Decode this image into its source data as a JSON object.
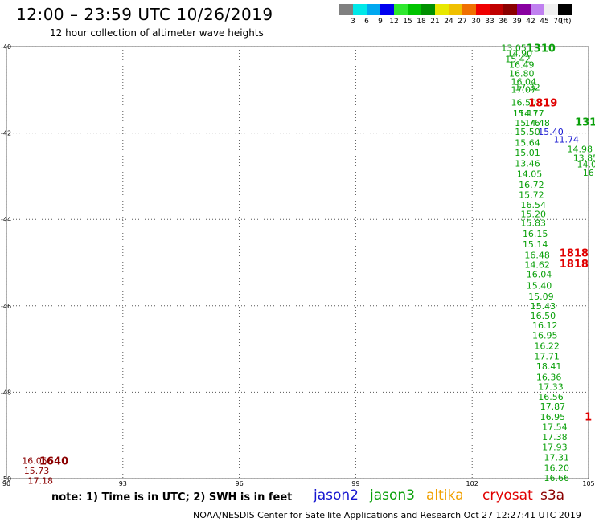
{
  "title": "12:00 – 23:59 UTC 10/26/2019",
  "subtitle": "12 hour collection of altimeter wave heights",
  "note": "note:  1) Time is in UTC;  2) SWH is in feet",
  "footer": "NOAA/NESDIS Center for Satellite Applications and Research     Oct 27 12:27:41 UTC 2019",
  "satellites": [
    {
      "name": "jason2",
      "color": "#1515d0"
    },
    {
      "name": "jason3",
      "color": "#0aa00a"
    },
    {
      "name": "altika",
      "color": "#f0a000"
    },
    {
      "name": "cryosat",
      "color": "#e00000"
    },
    {
      "name": "s3a",
      "color": "#8b0000"
    }
  ],
  "colorbar": {
    "colors": [
      "#808080",
      "#00e8e8",
      "#00a8f0",
      "#0000f0",
      "#2ee82e",
      "#00c400",
      "#009000",
      "#e8e800",
      "#f0c000",
      "#f07000",
      "#f00000",
      "#c00000",
      "#8b0000",
      "#8800a0",
      "#c080f0",
      "#f0f0f0",
      "#000000"
    ],
    "labels": [
      "3",
      "6",
      "9",
      "12",
      "15",
      "18",
      "21",
      "24",
      "27",
      "30",
      "33",
      "36",
      "39",
      "42",
      "45",
      "70"
    ],
    "unit": "(ft)"
  },
  "chart_data": {
    "type": "scatter",
    "map_extent": {
      "lon": [
        90,
        105
      ],
      "lat": [
        -50,
        -40
      ]
    },
    "lon_ticks": [
      "90",
      "93",
      "96",
      "99",
      "102",
      "105"
    ],
    "lat_ticks": [
      "-40",
      "-42",
      "-44",
      "-46",
      "-48",
      "-50"
    ],
    "grid": true,
    "tracks": [
      {
        "satellite": "jason3",
        "color": "#0aa00a",
        "time_label": "1310",
        "time_lon": 103.4,
        "time_lat": -40.03,
        "points": [
          {
            "lon": 102.75,
            "lat": -40.03,
            "swh": "13.05"
          },
          {
            "lon": 102.9,
            "lat": -40.16,
            "swh": "14.90"
          },
          {
            "lon": 102.85,
            "lat": -40.29,
            "swh": "15.42"
          },
          {
            "lon": 102.95,
            "lat": -40.42,
            "swh": "16.49"
          },
          {
            "lon": 102.95,
            "lat": -40.62,
            "swh": "16.80"
          },
          {
            "lon": 103.0,
            "lat": -40.81,
            "swh": "16.04"
          },
          {
            "lon": 103.0,
            "lat": -40.99,
            "swh": "17.07"
          },
          {
            "lon": 103.1,
            "lat": -40.94,
            "swh": "17.32"
          },
          {
            "lon": 103.0,
            "lat": -41.29,
            "swh": "16.50"
          },
          {
            "lon": 103.05,
            "lat": -41.54,
            "swh": "15.11"
          },
          {
            "lon": 103.2,
            "lat": -41.54,
            "swh": "14.77"
          },
          {
            "lon": 103.1,
            "lat": -41.77,
            "swh": "15.76"
          },
          {
            "lon": 103.35,
            "lat": -41.77,
            "swh": "14.48"
          },
          {
            "lon": 103.1,
            "lat": -41.97,
            "swh": "15.50"
          },
          {
            "lon": 103.1,
            "lat": -42.22,
            "swh": "15.64"
          },
          {
            "lon": 103.1,
            "lat": -42.45,
            "swh": "15.01"
          },
          {
            "lon": 103.1,
            "lat": -42.7,
            "swh": "13.46"
          },
          {
            "lon": 103.15,
            "lat": -42.95,
            "swh": "14.05"
          },
          {
            "lon": 103.2,
            "lat": -43.2,
            "swh": "16.72"
          },
          {
            "lon": 103.2,
            "lat": -43.43,
            "swh": "15.72"
          },
          {
            "lon": 103.25,
            "lat": -43.66,
            "swh": "16.54"
          },
          {
            "lon": 103.25,
            "lat": -43.88,
            "swh": "15.20"
          },
          {
            "lon": 103.25,
            "lat": -44.08,
            "swh": "15.83"
          },
          {
            "lon": 103.3,
            "lat": -44.33,
            "swh": "16.15"
          },
          {
            "lon": 103.3,
            "lat": -44.57,
            "swh": "15.14"
          },
          {
            "lon": 103.35,
            "lat": -44.82,
            "swh": "16.48"
          },
          {
            "lon": 103.35,
            "lat": -45.05,
            "swh": "14.62"
          },
          {
            "lon": 103.4,
            "lat": -45.27,
            "swh": "16.04"
          },
          {
            "lon": 103.4,
            "lat": -45.53,
            "swh": "15.40"
          },
          {
            "lon": 103.45,
            "lat": -45.78,
            "swh": "15.09"
          },
          {
            "lon": 103.5,
            "lat": -46.0,
            "swh": "15.43"
          },
          {
            "lon": 103.5,
            "lat": -46.23,
            "swh": "16.50"
          },
          {
            "lon": 103.55,
            "lat": -46.45,
            "swh": "16.12"
          },
          {
            "lon": 103.55,
            "lat": -46.68,
            "swh": "16.95"
          },
          {
            "lon": 103.6,
            "lat": -46.92,
            "swh": "16.22"
          },
          {
            "lon": 103.6,
            "lat": -47.17,
            "swh": "17.71"
          },
          {
            "lon": 103.65,
            "lat": -47.4,
            "swh": "18.41"
          },
          {
            "lon": 103.65,
            "lat": -47.65,
            "swh": "16.36"
          },
          {
            "lon": 103.7,
            "lat": -47.87,
            "swh": "17.33"
          },
          {
            "lon": 103.7,
            "lat": -48.1,
            "swh": "16.56"
          },
          {
            "lon": 103.75,
            "lat": -48.33,
            "swh": "17.87"
          },
          {
            "lon": 103.75,
            "lat": -48.57,
            "swh": "16.95"
          },
          {
            "lon": 103.8,
            "lat": -48.8,
            "swh": "17.54"
          },
          {
            "lon": 103.8,
            "lat": -49.03,
            "swh": "17.38"
          },
          {
            "lon": 103.8,
            "lat": -49.27,
            "swh": "17.93"
          },
          {
            "lon": 103.85,
            "lat": -49.51,
            "swh": "17.31"
          },
          {
            "lon": 103.85,
            "lat": -49.75,
            "swh": "16.20"
          },
          {
            "lon": 103.85,
            "lat": -49.98,
            "swh": "16.66"
          }
        ]
      },
      {
        "satellite": "jason3",
        "color": "#0aa00a",
        "time_label": "131",
        "time_lon": 104.65,
        "time_lat": -41.74,
        "points": [
          {
            "lon": 104.45,
            "lat": -42.37,
            "swh": "14.98"
          },
          {
            "lon": 104.6,
            "lat": -42.57,
            "swh": "13.85"
          },
          {
            "lon": 104.7,
            "lat": -42.72,
            "swh": "14.0"
          },
          {
            "lon": 104.85,
            "lat": -42.92,
            "swh": "16"
          }
        ]
      },
      {
        "satellite": "jason2",
        "color": "#1515d0",
        "time_label": "",
        "time_lon": 0,
        "time_lat": 0,
        "points": [
          {
            "lon": 103.7,
            "lat": -41.97,
            "swh": "15.40"
          },
          {
            "lon": 104.1,
            "lat": -42.15,
            "swh": "11.74"
          }
        ]
      },
      {
        "satellite": "cryosat",
        "color": "#e00000",
        "time_label": "1819",
        "time_lon": 103.45,
        "time_lat": -41.29,
        "points": []
      },
      {
        "satellite": "cryosat",
        "color": "#e00000",
        "time_label": "1818",
        "time_lon": 104.25,
        "time_lat": -44.77,
        "points": []
      },
      {
        "satellite": "cryosat",
        "color": "#e00000",
        "time_label": "1818",
        "time_lon": 104.25,
        "time_lat": -45.02,
        "points": []
      },
      {
        "satellite": "cryosat",
        "color": "#e00000",
        "time_label": "1",
        "time_lon": 104.9,
        "time_lat": -48.56,
        "points": []
      },
      {
        "satellite": "s3a",
        "color": "#8b0000",
        "time_label": "1640",
        "time_lon": 90.85,
        "time_lat": -49.58,
        "points": [
          {
            "lon": 90.4,
            "lat": -49.58,
            "swh": "16.05"
          },
          {
            "lon": 90.45,
            "lat": -49.81,
            "swh": "15.73"
          },
          {
            "lon": 90.55,
            "lat": -50.05,
            "swh": "17.18"
          }
        ]
      }
    ]
  }
}
